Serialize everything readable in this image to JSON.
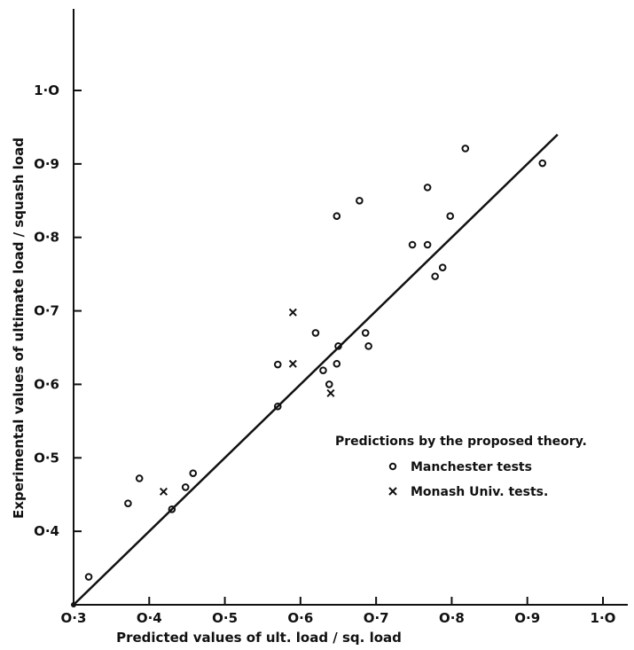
{
  "chart_data": {
    "type": "scatter",
    "xlabel": "Predicted values of ult. load / sq. load",
    "ylabel": "Experimental values of ultimate load / squash load",
    "xlim": [
      0.3,
      1.0
    ],
    "ylim": [
      0.3,
      1.0
    ],
    "x_ticks": [
      "O·3",
      "O·4",
      "O·5",
      "O·6",
      "O·7",
      "O·8",
      "O·9",
      "1·O"
    ],
    "y_ticks": [
      "O·4",
      "O·5",
      "O·6",
      "O·7",
      "O·8",
      "O·9",
      "1·O"
    ],
    "grid": false,
    "legend": {
      "title": "Predictions by the proposed theory.",
      "placement": "center-right",
      "entries": [
        {
          "marker": "o",
          "label": "Manchester tests"
        },
        {
          "marker": "x",
          "label": "Monash Univ. tests."
        }
      ]
    },
    "series": [
      {
        "marker": "o",
        "points": [
          [
            0.32,
            0.338
          ],
          [
            0.372,
            0.438
          ],
          [
            0.387,
            0.472
          ],
          [
            0.43,
            0.43
          ],
          [
            0.448,
            0.46
          ],
          [
            0.458,
            0.479
          ],
          [
            0.57,
            0.57
          ],
          [
            0.57,
            0.627
          ],
          [
            0.62,
            0.67
          ],
          [
            0.63,
            0.619
          ],
          [
            0.638,
            0.6
          ],
          [
            0.648,
            0.628
          ],
          [
            0.65,
            0.652
          ],
          [
            0.648,
            0.829
          ],
          [
            0.678,
            0.85
          ],
          [
            0.686,
            0.67
          ],
          [
            0.69,
            0.652
          ],
          [
            0.748,
            0.79
          ],
          [
            0.768,
            0.79
          ],
          [
            0.768,
            0.868
          ],
          [
            0.778,
            0.747
          ],
          [
            0.788,
            0.759
          ],
          [
            0.798,
            0.829
          ],
          [
            0.818,
            0.921
          ],
          [
            0.92,
            0.901
          ]
        ]
      },
      {
        "marker": "x",
        "points": [
          [
            0.419,
            0.454
          ],
          [
            0.59,
            0.698
          ],
          [
            0.59,
            0.628
          ],
          [
            0.64,
            0.588
          ]
        ]
      }
    ],
    "reference_line": {
      "x": [
        0.3,
        0.94
      ],
      "y": [
        0.3,
        0.94
      ]
    }
  }
}
